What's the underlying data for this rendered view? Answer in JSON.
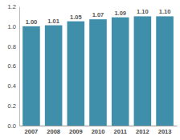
{
  "chart_data": {
    "type": "bar",
    "categories": [
      "2007",
      "2008",
      "2009",
      "2010",
      "2011",
      "2012",
      "2013"
    ],
    "values": [
      1.0,
      1.01,
      1.05,
      1.07,
      1.09,
      1.1,
      1.1
    ],
    "value_labels": [
      "1.00",
      "1.01",
      "1.05",
      "1.07",
      "1.09",
      "1.10",
      "1.10"
    ],
    "data_labels": true,
    "color": "#3f8fab",
    "ylim": [
      0,
      1.2
    ],
    "yticks": [
      {
        "value": 0,
        "label": "0.0"
      },
      0.2,
      0.4,
      0.6,
      0.8,
      {
        "value": 1,
        "label": "1.0"
      },
      1.2
    ],
    "grid": false
  }
}
